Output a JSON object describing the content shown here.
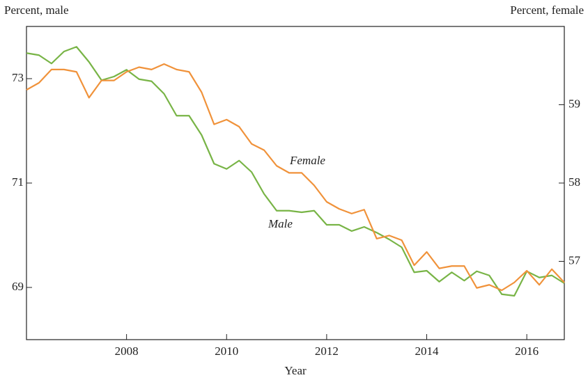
{
  "chart_data": {
    "type": "line",
    "y_label": "Percent, male",
    "y2_label": "Percent, female",
    "x_label": "Year",
    "x": [
      2006,
      2006.25,
      2006.5,
      2006.75,
      2007,
      2007.25,
      2007.5,
      2007.75,
      2008,
      2008.25,
      2008.5,
      2008.75,
      2009,
      2009.25,
      2009.5,
      2009.75,
      2010,
      2010.25,
      2010.5,
      2010.75,
      2011,
      2011.25,
      2011.5,
      2011.75,
      2012,
      2012.25,
      2012.5,
      2012.75,
      2013,
      2013.25,
      2013.5,
      2013.75,
      2014,
      2014.25,
      2014.5,
      2014.75,
      2015,
      2015.25,
      2015.5,
      2015.75,
      2016,
      2016.25,
      2016.5,
      2016.75
    ],
    "series": [
      {
        "name": "Male",
        "color": "#78b446",
        "axis": "y",
        "values": [
          73.49,
          73.45,
          73.29,
          73.52,
          73.61,
          73.32,
          72.97,
          73.04,
          73.17,
          72.99,
          72.95,
          72.71,
          72.29,
          72.29,
          71.92,
          71.37,
          71.27,
          71.43,
          71.21,
          70.79,
          70.47,
          70.47,
          70.44,
          70.47,
          70.2,
          70.2,
          70.08,
          70.16,
          70.05,
          69.92,
          69.77,
          69.29,
          69.32,
          69.11,
          69.29,
          69.13,
          69.31,
          69.23,
          68.87,
          68.84,
          69.31,
          69.19,
          69.23,
          69.08
        ]
      },
      {
        "name": "Female",
        "color": "#f0923a",
        "axis": "y2",
        "values": [
          59.19,
          59.28,
          59.45,
          59.45,
          59.42,
          59.09,
          59.31,
          59.31,
          59.42,
          59.48,
          59.45,
          59.52,
          59.45,
          59.42,
          59.16,
          58.75,
          58.81,
          58.72,
          58.5,
          58.42,
          58.22,
          58.13,
          58.13,
          57.97,
          57.76,
          57.67,
          57.61,
          57.66,
          57.29,
          57.33,
          57.27,
          56.95,
          57.12,
          56.91,
          56.94,
          56.94,
          56.66,
          56.7,
          56.63,
          56.73,
          56.88,
          56.7,
          56.9,
          56.73
        ]
      }
    ],
    "xlim": [
      2006,
      2016.75
    ],
    "xticks": [
      2008,
      2010,
      2012,
      2014,
      2016
    ],
    "ylim": [
      68,
      74
    ],
    "yticks": [
      69,
      71,
      73
    ],
    "y2lim": [
      56,
      60
    ],
    "y2ticks": [
      57,
      58,
      59
    ]
  }
}
